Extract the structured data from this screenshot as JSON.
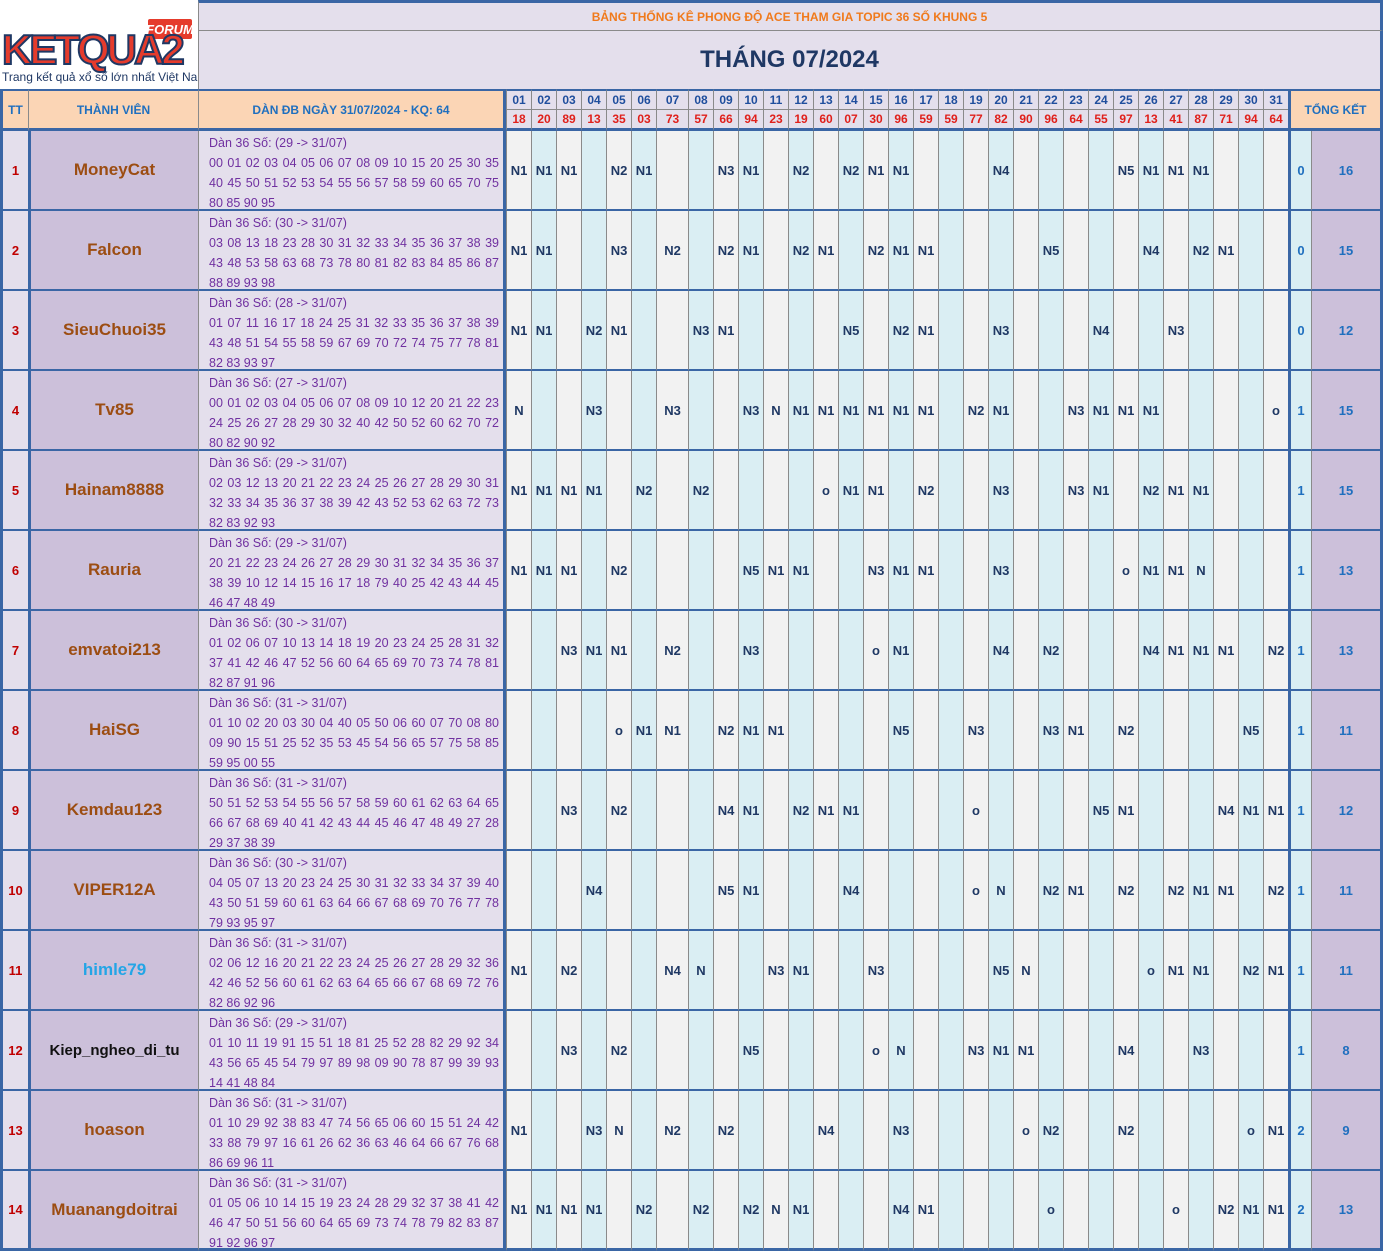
{
  "logo": {
    "brand_text": "KETQUA2",
    "badge": "FORUM",
    "tagline": "Trang kết quả xổ số lớn nhất Việt Nam"
  },
  "header": {
    "subtitle": "BẢNG THỐNG KÊ PHONG ĐỘ ACE THAM GIA TOPIC 36 SỐ KHUNG 5",
    "month_title": "THÁNG 07/2024",
    "col_tt": "TT",
    "col_member": "THÀNH VIÊN",
    "col_dan": "DÀN ĐB NGÀY 31/07/2024 - KQ: 64",
    "col_summary": "TỔNG KẾT"
  },
  "days": [
    "01",
    "02",
    "03",
    "04",
    "05",
    "06",
    "07",
    "08",
    "09",
    "10",
    "11",
    "12",
    "13",
    "14",
    "15",
    "16",
    "17",
    "18",
    "19",
    "20",
    "21",
    "22",
    "23",
    "24",
    "25",
    "26",
    "27",
    "28",
    "29",
    "30",
    "31"
  ],
  "results": [
    "18",
    "20",
    "89",
    "13",
    "35",
    "03",
    "73",
    "57",
    "66",
    "94",
    "23",
    "19",
    "60",
    "07",
    "30",
    "96",
    "59",
    "59",
    "77",
    "82",
    "90",
    "96",
    "64",
    "55",
    "97",
    "13",
    "41",
    "87",
    "71",
    "94",
    "64"
  ],
  "rows": [
    {
      "tt": "1",
      "name": "MoneyCat",
      "dan_title": "Dàn 36 Số: (29 -> 31/07)",
      "dan_numbers": "00 01 02 03 04 05 06 07 08 09 10 15 20 25 30 35 40 45 50 51 52 53 54 55 56 57 58 59 60 65 70 75 80 85 90 95",
      "marks": [
        "N1",
        "N1",
        "N1",
        "",
        "N2",
        "N1",
        "",
        "",
        "N3",
        "N1",
        "",
        "N2",
        "",
        "N2",
        "N1",
        "N1",
        "",
        "",
        "",
        "N4",
        "",
        "",
        "",
        "",
        "N5",
        "N1",
        "N1",
        "N1",
        "",
        "",
        ""
      ],
      "s1": "0",
      "s2": "16"
    },
    {
      "tt": "2",
      "name": "Falcon",
      "dan_title": "Dàn 36 Số: (30 -> 31/07)",
      "dan_numbers": "03 08 13 18 23 28 30 31 32 33 34 35 36 37 38 39 43 48 53 58 63 68 73 78 80 81 82 83 84 85 86 87 88 89 93 98",
      "marks": [
        "N1",
        "N1",
        "",
        "",
        "N3",
        "",
        "N2",
        "",
        "N2",
        "N1",
        "",
        "N2",
        "N1",
        "",
        "N2",
        "N1",
        "N1",
        "",
        "",
        "",
        "",
        "N5",
        "",
        "",
        "",
        "N4",
        "",
        "N2",
        "N1",
        "",
        ""
      ],
      "s1": "0",
      "s2": "15"
    },
    {
      "tt": "3",
      "name": "SieuChuoi35",
      "dan_title": "Dàn 36 Số: (28 -> 31/07)",
      "dan_numbers": "01 07 11 16 17 18 24 25 31 32 33 35 36 37 38 39 43 48 51 54 55 58 59 67 69 70 72 74 75 77 78 81 82 83 93 97",
      "marks": [
        "N1",
        "N1",
        "",
        "N2",
        "N1",
        "",
        "",
        "N3",
        "N1",
        "",
        "",
        "",
        "",
        "N5",
        "",
        "N2",
        "N1",
        "",
        "",
        "N3",
        "",
        "",
        "",
        "N4",
        "",
        "",
        "N3",
        "",
        "",
        "",
        ""
      ],
      "s1": "0",
      "s2": "12"
    },
    {
      "tt": "4",
      "name": "Tv85",
      "dan_title": "Dàn 36 Số: (27 -> 31/07)",
      "dan_numbers": "00 01 02 03 04 05 06 07 08 09 10 12 20 21 22 23 24 25 26 27 28 29 30 32 40 42 50 52 60 62 70 72 80 82 90 92",
      "marks": [
        "N",
        "",
        "",
        "N3",
        "",
        "",
        "N3",
        "",
        "",
        "N3",
        "N",
        "N1",
        "N1",
        "N1",
        "N1",
        "N1",
        "N1",
        "",
        "N2",
        "N1",
        "",
        "",
        "N3",
        "N1",
        "N1",
        "N1",
        "",
        "",
        "",
        "",
        "o"
      ],
      "s1": "1",
      "s2": "15"
    },
    {
      "tt": "5",
      "name": "Hainam8888",
      "dan_title": "Dàn 36 Số: (29 -> 31/07)",
      "dan_numbers": "02 03 12 13 20 21 22 23 24 25 26 27 28 29 30 31 32 33 34 35 36 37 38 39 42 43 52 53 62 63 72 73 82 83 92 93",
      "marks": [
        "N1",
        "N1",
        "N1",
        "N1",
        "",
        "N2",
        "",
        "N2",
        "",
        "",
        "",
        "",
        "o",
        "N1",
        "N1",
        "",
        "N2",
        "",
        "",
        "N3",
        "",
        "",
        "N3",
        "N1",
        "",
        "N2",
        "N1",
        "N1",
        "",
        "",
        ""
      ],
      "s1": "1",
      "s2": "15"
    },
    {
      "tt": "6",
      "name": "Rauria",
      "dan_title": "Dàn 36 Số: (29 -> 31/07)",
      "dan_numbers": "20 21 22 23 24 26 27 28 29 30 31 32 34 35 36 37 38 39 10 12 14 15 16 17 18 79 40 25 42 43 44 45 46 47 48 49",
      "marks": [
        "N1",
        "N1",
        "N1",
        "",
        "N2",
        "",
        "",
        "",
        "",
        "N5",
        "N1",
        "N1",
        "",
        "",
        "N3",
        "N1",
        "N1",
        "",
        "",
        "N3",
        "",
        "",
        "",
        "",
        "o",
        "N1",
        "N1",
        "N",
        "",
        "",
        ""
      ],
      "s1": "1",
      "s2": "13"
    },
    {
      "tt": "7",
      "name": "emvatoi213",
      "dan_title": "Dàn 36 Số: (30 -> 31/07)",
      "dan_numbers": "01 02 06 07 10 13 14 18 19 20 23 24 25 28 31 32 37 41 42 46 47 52 56 60 64 65 69 70 73 74 78 81 82 87 91 96",
      "marks": [
        "",
        "",
        "N3",
        "N1",
        "N1",
        "",
        "N2",
        "",
        "",
        "N3",
        "",
        "",
        "",
        "",
        "o",
        "N1",
        "",
        "",
        "",
        "N4",
        "",
        "N2",
        "",
        "",
        "",
        "N4",
        "N1",
        "N1",
        "N1",
        "",
        "N2"
      ],
      "s1": "1",
      "s2": "13"
    },
    {
      "tt": "8",
      "name": "HaiSG",
      "dan_title": "Dàn 36 Số: (31 -> 31/07)",
      "dan_numbers": "01 10 02 20 03 30 04 40 05 50 06 60 07 70 08 80 09 90 15 51 25 52 35 53 45 54 56 65 57 75 58 85 59 95 00 55",
      "marks": [
        "",
        "",
        "",
        "",
        "o",
        "N1",
        "N1",
        "",
        "N2",
        "N1",
        "N1",
        "",
        "",
        "",
        "",
        "N5",
        "",
        "",
        "N3",
        "",
        "",
        "N3",
        "N1",
        "",
        "N2",
        "",
        "",
        "",
        "",
        "N5",
        ""
      ],
      "s1": "1",
      "s2": "11"
    },
    {
      "tt": "9",
      "name": "Kemdau123",
      "dan_title": "Dàn 36 Số: (31 -> 31/07)",
      "dan_numbers": "50 51 52 53 54 55 56 57 58 59 60 61 62 63 64 65 66 67 68 69 40 41 42 43 44 45 46 47 48 49 27 28 29 37 38 39",
      "marks": [
        "",
        "",
        "N3",
        "",
        "N2",
        "",
        "",
        "",
        "N4",
        "N1",
        "",
        "N2",
        "N1",
        "N1",
        "",
        "",
        "",
        "",
        "o",
        "",
        "",
        "",
        "",
        "N5",
        "N1",
        "",
        "",
        "",
        "N4",
        "N1",
        "N1"
      ],
      "s1": "1",
      "s2": "12"
    },
    {
      "tt": "10",
      "name": "VIPER12A",
      "dan_title": "Dàn 36 Số: (30 -> 31/07)",
      "dan_numbers": "04 05 07 13 20 23 24 25 30 31 32 33 34 37 39 40 43 50 51 59 60 61 63 64 66 67 68 69 70 76 77 78 79 93 95 97",
      "marks": [
        "",
        "",
        "",
        "N4",
        "",
        "",
        "",
        "",
        "N5",
        "N1",
        "",
        "",
        "",
        "N4",
        "",
        "",
        "",
        "",
        "o",
        "N",
        "",
        "N2",
        "N1",
        "",
        "N2",
        "",
        "N2",
        "N1",
        "N1",
        "",
        "N2"
      ],
      "s1": "1",
      "s2": "11"
    },
    {
      "tt": "11",
      "name": "himle79",
      "dan_title": "Dàn 36 Số: (31 -> 31/07)",
      "dan_numbers": "02 06 12 16 20 21 22 23 24 25 26 27 28 29 32 36 42 46 52 56 60 61 62 63 64 65 66 67 68 69 72 76 82 86 92 96",
      "marks": [
        "N1",
        "",
        "N2",
        "",
        "",
        "",
        "N4",
        "N",
        "",
        "",
        "N3",
        "N1",
        "",
        "",
        "N3",
        "",
        "",
        "",
        "",
        "N5",
        "N",
        "",
        "",
        "",
        "",
        "o",
        "N1",
        "N1",
        "",
        "N2",
        "N1"
      ],
      "s1": "1",
      "s2": "11"
    },
    {
      "tt": "12",
      "name": "Kiep_ngheo_di_tu",
      "dan_title": "Dàn 36 Số: (29 -> 31/07)",
      "dan_numbers": "01 10 11 19 91 15 51 18 81 25 52 28 82 29 92 34 43 56 65 45 54 79 97 89 98 09 90 78 87 99 39 93 14 41 48 84",
      "marks": [
        "",
        "",
        "N3",
        "",
        "N2",
        "",
        "",
        "",
        "",
        "N5",
        "",
        "",
        "",
        "",
        "o",
        "N",
        "",
        "",
        "N3",
        "N1",
        "N1",
        "",
        "",
        "",
        "N4",
        "",
        "",
        "N3",
        "",
        "",
        ""
      ],
      "s1": "1",
      "s2": "8"
    },
    {
      "tt": "13",
      "name": "hoason",
      "dan_title": "Dàn 36 Số: (31 -> 31/07)",
      "dan_numbers": "01 10 29 92 38 83 47 74 56 65 06 60 15 51 24 42 33 88 79 97 16 61 26 62 36 63 46 64 66 67 76 68 86 69 96 11",
      "marks": [
        "N1",
        "",
        "",
        "N3",
        "N",
        "",
        "N2",
        "",
        "N2",
        "",
        "",
        "",
        "N4",
        "",
        "",
        "N3",
        "",
        "",
        "",
        "",
        "o",
        "N2",
        "",
        "",
        "N2",
        "",
        "",
        "",
        "",
        "o",
        "N1"
      ],
      "s1": "2",
      "s2": "9"
    },
    {
      "tt": "14",
      "name": "Muanangdoitrai",
      "dan_title": "Dàn 36 Số: (31 -> 31/07)",
      "dan_numbers": "01 05 06 10 14 15 19 23 24 28 29 32 37 38 41 42 46 47 50 51 56 60 64 65 69 73 74 78 79 82 83 87 91 92 96 97",
      "marks": [
        "N1",
        "N1",
        "N1",
        "N1",
        "",
        "N2",
        "",
        "N2",
        "",
        "N2",
        "N",
        "N1",
        "",
        "",
        "",
        "N4",
        "N1",
        "",
        "",
        "",
        "",
        "o",
        "",
        "",
        "",
        "",
        "o",
        "",
        "N2",
        "N1",
        "N1"
      ],
      "s1": "2",
      "s2": "13"
    }
  ],
  "colors": {
    "member_name": "#9c4d12",
    "member_name_alt": "#23a5e6",
    "member_name_dark": "#111111",
    "title": "#1f3864",
    "subtitle": "#f07a1c",
    "header_blue": "#1f6fbf",
    "result_red": "#e0201b",
    "dan_purple": "#7030a0",
    "border_blue": "#3a66a5"
  }
}
